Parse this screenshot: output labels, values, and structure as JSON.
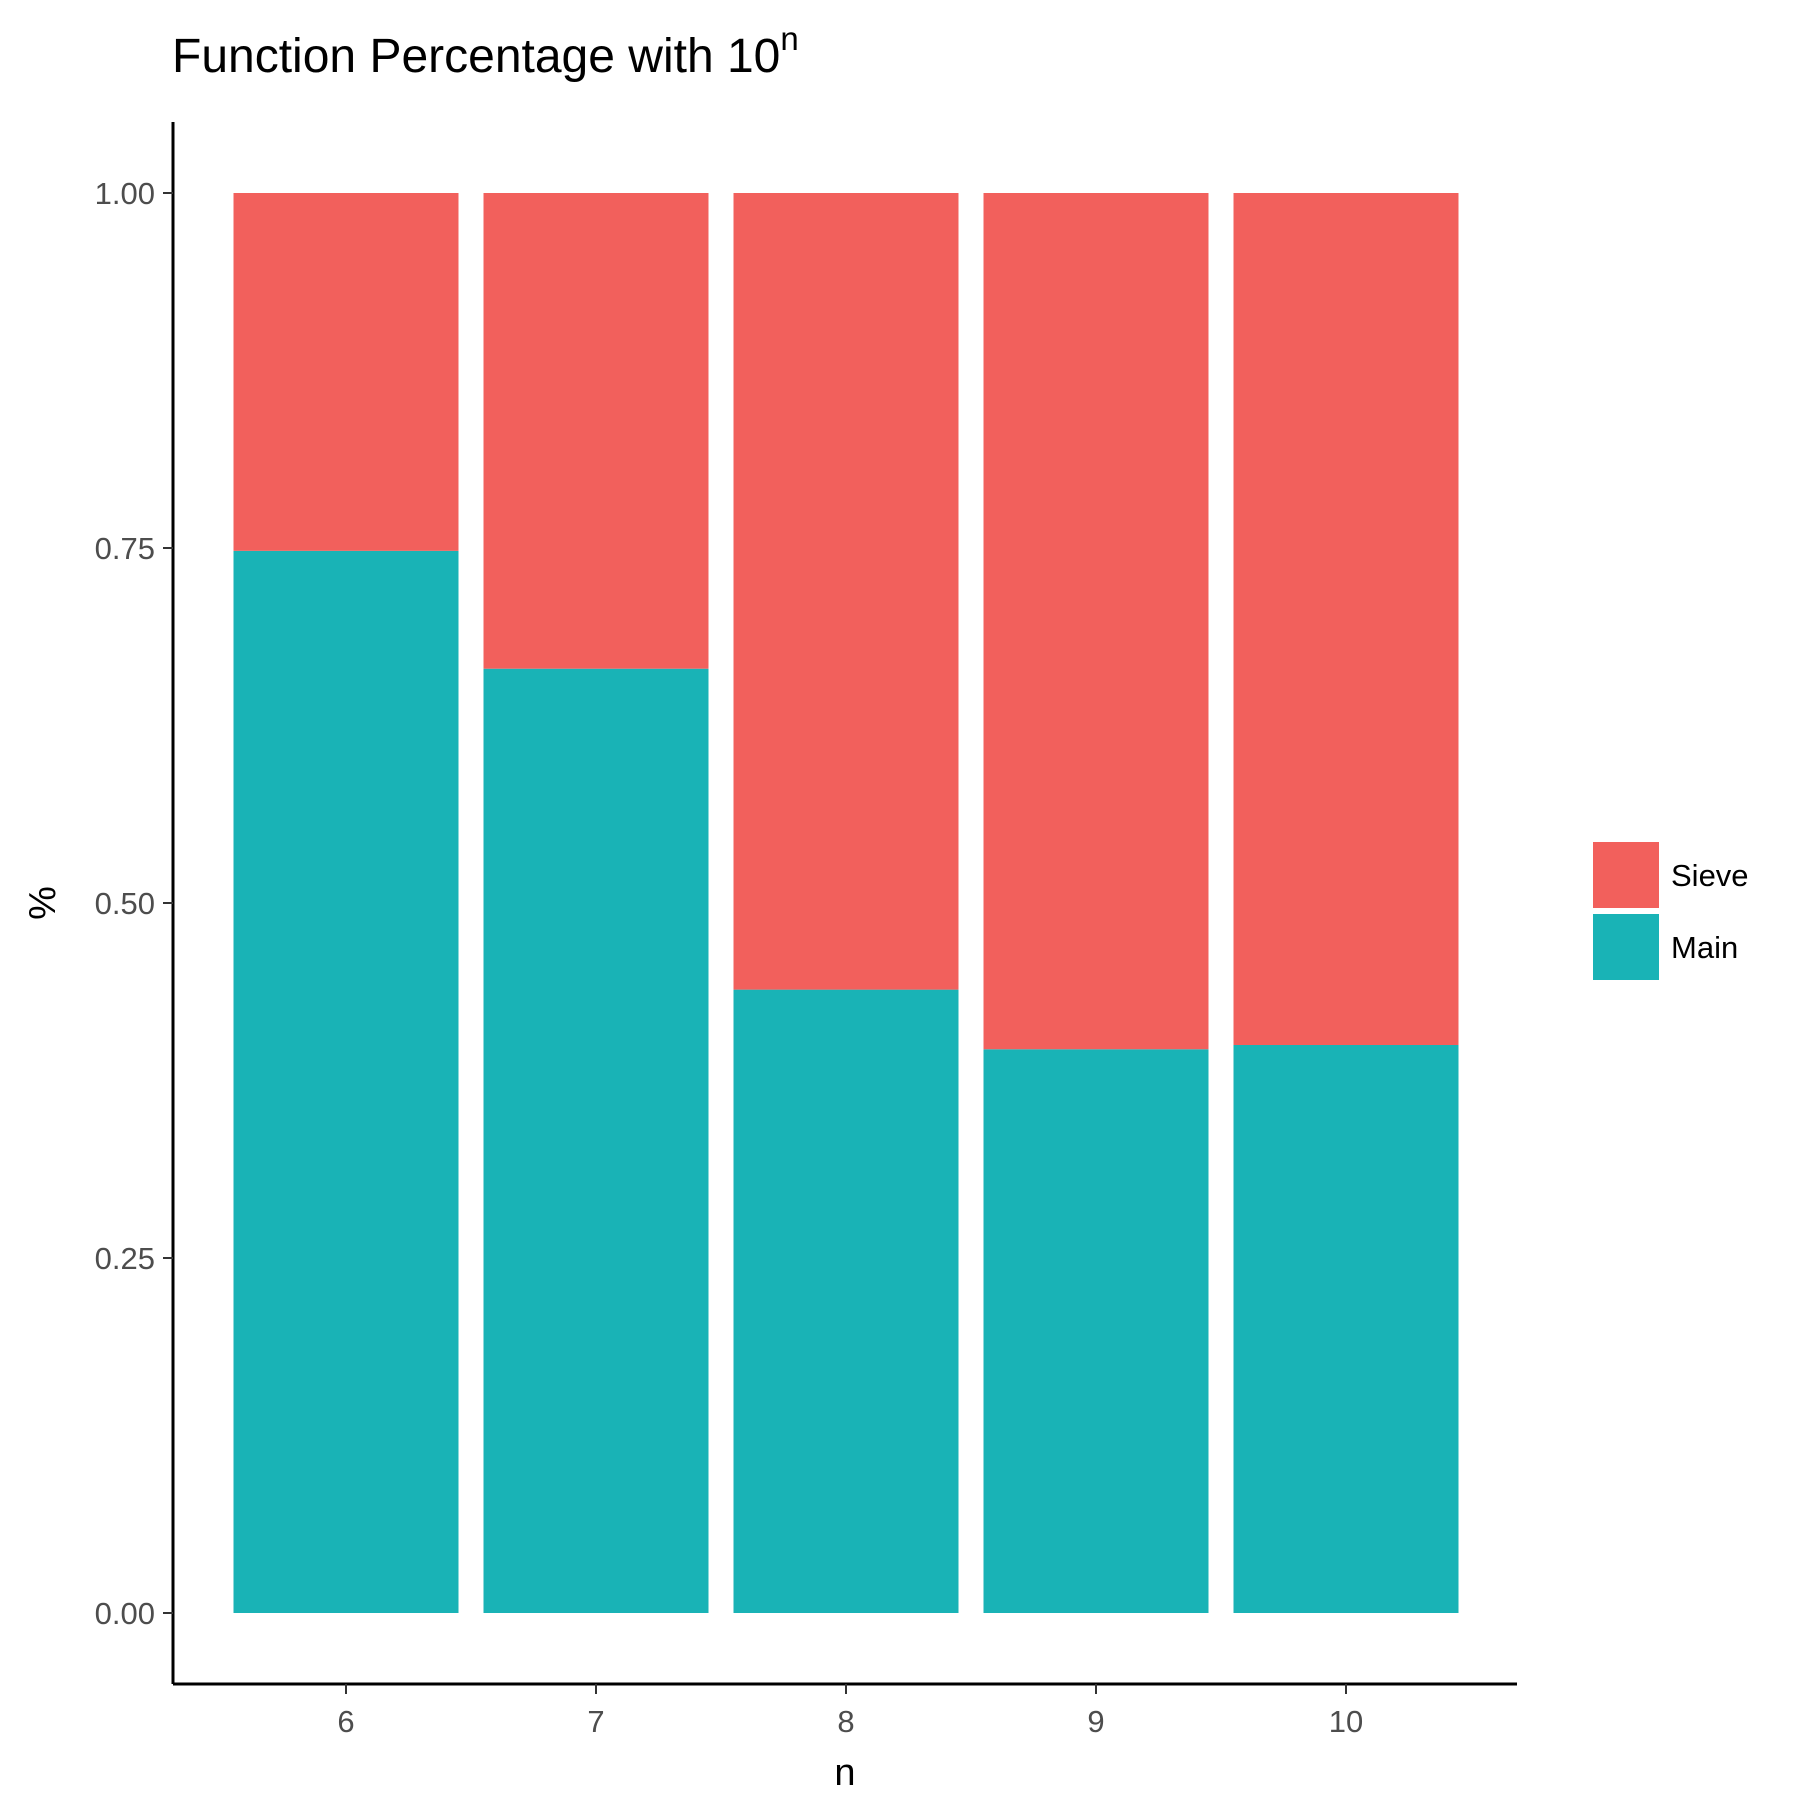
{
  "chart_data": {
    "type": "bar",
    "stacked": true,
    "title": "Function Percentage with 10",
    "title_superscript": "n",
    "xlabel": "n",
    "ylabel": "%",
    "categories": [
      "6",
      "7",
      "8",
      "9",
      "10"
    ],
    "series": [
      {
        "name": "Main",
        "color": "#19B3B6",
        "values": [
          0.748,
          0.665,
          0.439,
          0.397,
          0.4
        ]
      },
      {
        "name": "Sieve",
        "color": "#F2605C",
        "values": [
          0.252,
          0.335,
          0.561,
          0.603,
          0.6
        ]
      }
    ],
    "ylim": [
      -0.05,
      1.05
    ],
    "yticks": [
      "0.00",
      "0.25",
      "0.50",
      "0.75",
      "1.00"
    ],
    "legend_order": [
      "Sieve",
      "Main"
    ],
    "legend_position": "right",
    "grid": false
  }
}
